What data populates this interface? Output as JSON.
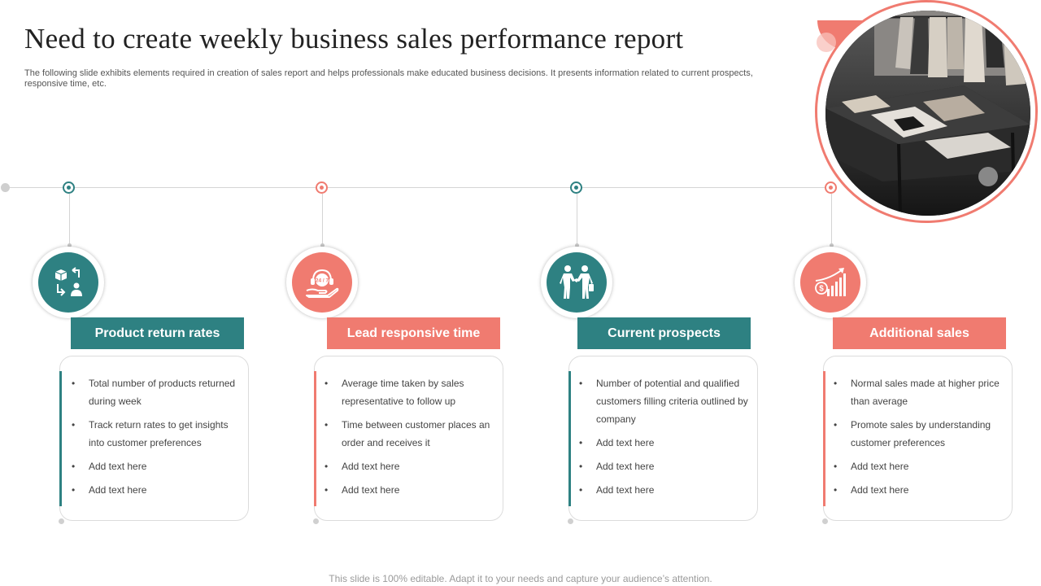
{
  "slide": {
    "title": "Need to create weekly business sales performance report",
    "subtitle": "The following slide exhibits elements required in creation of sales report and helps professionals make educated business decisions. It presents information related to current prospects, responsive time, etc.",
    "footer": "This slide is 100% editable. Adapt it to your needs and capture your audience’s attention."
  },
  "colors": {
    "teal": "#2e8182",
    "coral": "#f07b70"
  },
  "sections": [
    {
      "label": "Product return rates",
      "color": "teal",
      "icon": "box-return-exchange-icon",
      "items": [
        "Total number of products returned during week",
        "Track return rates to get insights into customer preferences",
        "Add text here",
        "Add text here"
      ]
    },
    {
      "label": "Lead responsive time",
      "color": "coral",
      "icon": "24-7-support-hand-icon",
      "icon_text": "24 / 7",
      "items": [
        "Average time taken by sales representative to follow up",
        "Time between customer places an order and receives it",
        "Add text here",
        "Add text here"
      ]
    },
    {
      "label": "Current prospects",
      "color": "teal",
      "icon": "handshake-people-icon",
      "items": [
        "Number of potential and qualified customers filling criteria outlined by company",
        "Add text here",
        "Add text here",
        "Add text here"
      ]
    },
    {
      "label": "Additional sales",
      "color": "coral",
      "icon": "sales-growth-chart-icon",
      "items": [
        "Normal sales made at higher price than average",
        "Promote sales by understanding customer preferences",
        "Add text here",
        "Add text here"
      ]
    }
  ]
}
